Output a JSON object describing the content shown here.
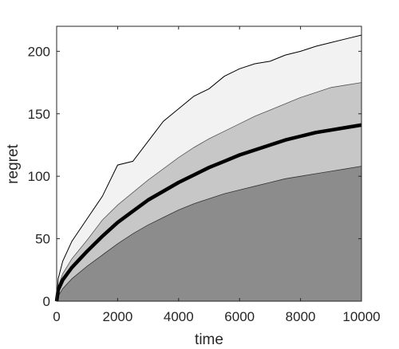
{
  "chart_data": {
    "type": "area",
    "title": "",
    "xlabel": "time",
    "ylabel": "regret",
    "xlim": [
      0,
      10000
    ],
    "ylim": [
      0,
      220
    ],
    "x_ticks": [
      0,
      2000,
      4000,
      6000,
      8000,
      10000
    ],
    "y_ticks": [
      0,
      50,
      100,
      150,
      200
    ],
    "x_tick_labels": [
      "0",
      "2000",
      "4000",
      "6000",
      "8000",
      "10000"
    ],
    "y_tick_labels": [
      "0",
      "50",
      "100",
      "150",
      "200"
    ],
    "grid": false,
    "legend": "none",
    "x": [
      0,
      50,
      200,
      500,
      1000,
      1500,
      2000,
      2500,
      3000,
      3500,
      4000,
      4500,
      5000,
      5500,
      6000,
      6500,
      7000,
      7500,
      8000,
      8500,
      9000,
      9500,
      10000
    ],
    "series": [
      {
        "role": "max",
        "values": [
          0,
          18,
          32,
          48,
          66,
          84,
          109,
          112,
          128,
          144,
          154,
          164,
          170,
          180,
          186,
          190,
          192,
          197,
          200,
          204,
          207,
          210,
          213
        ],
        "color": "#000000"
      },
      {
        "role": "upper",
        "values": [
          0,
          12,
          22,
          34,
          49,
          65,
          77,
          87,
          97,
          106,
          115,
          123,
          130,
          136,
          142,
          148,
          153,
          158,
          163,
          167,
          171,
          173,
          175
        ],
        "color": "#555555"
      },
      {
        "role": "mean",
        "values": [
          0,
          9,
          17,
          27,
          40,
          52,
          63,
          72,
          81,
          88,
          95,
          101,
          107,
          112,
          117,
          121,
          125,
          129,
          132,
          135,
          137,
          139,
          141
        ],
        "color": "#000000"
      },
      {
        "role": "lower",
        "values": [
          0,
          4,
          10,
          18,
          28,
          37,
          46,
          54,
          61,
          67,
          73,
          78,
          82,
          86,
          89,
          92,
          95,
          98,
          100,
          102,
          104,
          106,
          108
        ],
        "color": "#333333"
      }
    ],
    "fills": {
      "outer": "#f2f2f2",
      "inner": "#c7c7c7",
      "bottom": "#8c8c8c"
    }
  }
}
